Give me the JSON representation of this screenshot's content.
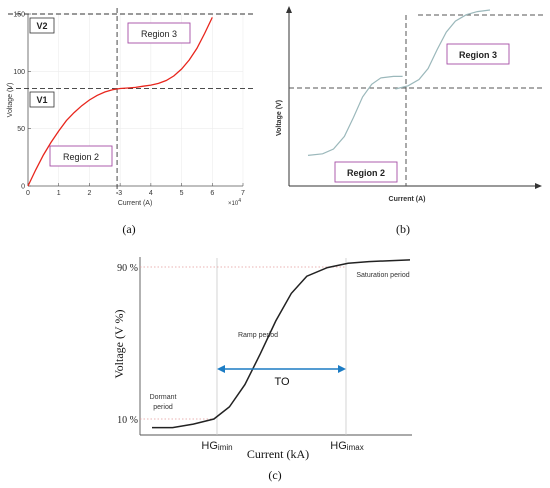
{
  "panels": {
    "a": {
      "caption": "(a)",
      "chart_data": {
        "type": "line",
        "xlabel": "Current (A)",
        "ylabel": "Voltage (V)",
        "x_multiplier_label": "×10",
        "x_multiplier_exp": "4",
        "xlim": [
          0,
          7
        ],
        "ylim": [
          0,
          150
        ],
        "xticks": [
          "0",
          "1",
          "2",
          "3",
          "4",
          "5",
          "6",
          "7"
        ],
        "yticks": [
          "0",
          "50",
          "100",
          "150"
        ],
        "grid": true,
        "series": [
          {
            "color": "#e8261d",
            "x": [
              0,
              0.25,
              0.5,
              0.75,
              1.0,
              1.25,
              1.5,
              1.75,
              2.0,
              2.25,
              2.5,
              2.75,
              3.0,
              3.25,
              3.5,
              3.75,
              4.0,
              4.25,
              4.5,
              4.75,
              5.0,
              5.25,
              5.5,
              5.75,
              6.0
            ],
            "y": [
              0,
              14,
              27,
              38,
              48,
              57,
              64,
              70,
              75,
              79,
              82,
              84,
              85,
              85.5,
              86,
              87,
              88,
              89.5,
              92,
              96,
              102,
              110,
              120,
              133,
              147
            ]
          }
        ],
        "reference_lines": {
          "vertical_x": 2.9,
          "horizontal_y": [
            85,
            150
          ]
        },
        "annotations": {
          "v1": "V1",
          "v2": "V2",
          "region2": "Region 2",
          "region3": "Region 3"
        }
      }
    },
    "b": {
      "caption": "(b)",
      "chart_data": {
        "type": "line",
        "xlabel": "Current (A)",
        "ylabel": "Voltage (V)",
        "series": [
          {
            "color": "#9bb8bb",
            "x": [
              0.0,
              0.08,
              0.14,
              0.2,
              0.25,
              0.3,
              0.35,
              0.4,
              0.47,
              0.52
            ],
            "y": [
              0.08,
              0.09,
              0.12,
              0.2,
              0.32,
              0.45,
              0.53,
              0.57,
              0.58,
              0.58
            ]
          },
          {
            "color": "#9bb8bb",
            "x": [
              0.48,
              0.55,
              0.61,
              0.66,
              0.71,
              0.76,
              0.81,
              0.87,
              0.93,
              1.0
            ],
            "y": [
              0.5,
              0.52,
              0.56,
              0.63,
              0.75,
              0.86,
              0.93,
              0.97,
              0.99,
              1.0
            ]
          }
        ],
        "annotations": {
          "region2": "Region 2",
          "region3": "Region 3"
        }
      }
    },
    "c": {
      "caption": "(c)",
      "chart_data": {
        "type": "line",
        "xlabel": "Current (kA)",
        "ylabel": "Voltage (V %)",
        "yticks": [
          "10 %",
          "90 %"
        ],
        "xticks": [
          {
            "main": "HG",
            "sub": "imin"
          },
          {
            "main": "HG",
            "sub": "imax"
          }
        ],
        "series": [
          {
            "color": "#222222",
            "x": [
              0.0,
              0.08,
              0.16,
              0.24,
              0.3,
              0.36,
              0.42,
              0.48,
              0.54,
              0.6,
              0.68,
              0.76,
              0.84,
              0.92,
              1.0
            ],
            "y": [
              0.02,
              0.02,
              0.04,
              0.07,
              0.14,
              0.27,
              0.45,
              0.64,
              0.8,
              0.9,
              0.95,
              0.975,
              0.985,
              0.99,
              0.995
            ]
          }
        ],
        "annotations": {
          "dormant_line1": "Dormant",
          "dormant_line2": "period",
          "ramp": "Ramp period",
          "saturation": "Saturation period",
          "to": "TO"
        }
      }
    }
  }
}
